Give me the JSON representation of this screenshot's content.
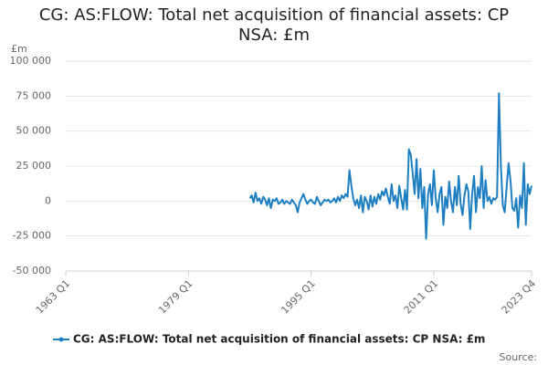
{
  "chart_data": {
    "type": "line",
    "title": "CG: AS:FLOW: Total net acquisition of financial assets: CP NSA: £m",
    "y_label": "£m",
    "source": "Source:",
    "x": [
      "1987 Q1",
      "1987 Q2",
      "1987 Q3",
      "1987 Q4",
      "1988 Q1",
      "1988 Q2",
      "1988 Q3",
      "1988 Q4",
      "1989 Q1",
      "1989 Q2",
      "1989 Q3",
      "1989 Q4",
      "1990 Q1",
      "1990 Q2",
      "1990 Q3",
      "1990 Q4",
      "1991 Q1",
      "1991 Q2",
      "1991 Q3",
      "1991 Q4",
      "1992 Q1",
      "1992 Q2",
      "1992 Q3",
      "1992 Q4",
      "1993 Q1",
      "1993 Q2",
      "1993 Q3",
      "1993 Q4",
      "1994 Q1",
      "1994 Q2",
      "1994 Q3",
      "1994 Q4",
      "1995 Q1",
      "1995 Q2",
      "1995 Q3",
      "1995 Q4",
      "1996 Q1",
      "1996 Q2",
      "1996 Q3",
      "1996 Q4",
      "1997 Q1",
      "1997 Q2",
      "1997 Q3",
      "1997 Q4",
      "1998 Q1",
      "1998 Q2",
      "1998 Q3",
      "1998 Q4",
      "1999 Q1",
      "1999 Q2",
      "1999 Q3",
      "1999 Q4",
      "2000 Q1",
      "2000 Q2",
      "2000 Q3",
      "2000 Q4",
      "2001 Q1",
      "2001 Q2",
      "2001 Q3",
      "2001 Q4",
      "2002 Q1",
      "2002 Q2",
      "2002 Q3",
      "2002 Q4",
      "2003 Q1",
      "2003 Q2",
      "2003 Q3",
      "2003 Q4",
      "2004 Q1",
      "2004 Q2",
      "2004 Q3",
      "2004 Q4",
      "2005 Q1",
      "2005 Q2",
      "2005 Q3",
      "2005 Q4",
      "2006 Q1",
      "2006 Q2",
      "2006 Q3",
      "2006 Q4",
      "2007 Q1",
      "2007 Q2",
      "2007 Q3",
      "2007 Q4",
      "2008 Q1",
      "2008 Q2",
      "2008 Q3",
      "2008 Q4",
      "2009 Q1",
      "2009 Q2",
      "2009 Q3",
      "2009 Q4",
      "2010 Q1",
      "2010 Q2",
      "2010 Q3",
      "2010 Q4",
      "2011 Q1",
      "2011 Q2",
      "2011 Q3",
      "2011 Q4",
      "2012 Q1",
      "2012 Q2",
      "2012 Q3",
      "2012 Q4",
      "2013 Q1",
      "2013 Q2",
      "2013 Q3",
      "2013 Q4",
      "2014 Q1",
      "2014 Q2",
      "2014 Q3",
      "2014 Q4",
      "2015 Q1",
      "2015 Q2",
      "2015 Q3",
      "2015 Q4",
      "2016 Q1",
      "2016 Q2",
      "2016 Q3",
      "2016 Q4",
      "2017 Q1",
      "2017 Q2",
      "2017 Q3",
      "2017 Q4",
      "2018 Q1",
      "2018 Q2",
      "2018 Q3",
      "2018 Q4",
      "2019 Q1",
      "2019 Q2",
      "2019 Q3",
      "2019 Q4",
      "2020 Q1",
      "2020 Q2",
      "2020 Q3",
      "2020 Q4",
      "2021 Q1",
      "2021 Q2",
      "2021 Q3",
      "2021 Q4",
      "2022 Q1",
      "2022 Q2",
      "2022 Q3",
      "2022 Q4",
      "2023 Q1",
      "2023 Q2",
      "2023 Q3",
      "2023 Q4"
    ],
    "series": [
      {
        "name": "CG: AS:FLOW: Total net acquisition of financial assets: CP NSA: £m",
        "color": "#1d7fc1",
        "values": [
          2000,
          4000,
          -1000,
          6000,
          0,
          2000,
          -2000,
          3000,
          1000,
          -3000,
          2000,
          -5000,
          1000,
          0,
          2000,
          -2000,
          -1000,
          1000,
          -2000,
          0,
          -1000,
          -2000,
          1000,
          -1000,
          -3000,
          -8000,
          -1000,
          2000,
          5000,
          1000,
          -2000,
          0,
          1000,
          -1000,
          -2000,
          3000,
          0,
          -3000,
          -1000,
          1000,
          0,
          1000,
          -1000,
          0,
          2000,
          -1000,
          3000,
          0,
          4000,
          2000,
          5000,
          3000,
          22000,
          11000,
          2000,
          -3000,
          1000,
          -5000,
          4000,
          -8000,
          3000,
          0,
          -6000,
          4000,
          -4000,
          3000,
          -2000,
          5000,
          1000,
          7000,
          4000,
          9000,
          3000,
          -2000,
          12000,
          0,
          4000,
          -5000,
          11000,
          2000,
          -6000,
          8000,
          -6000,
          37000,
          33000,
          20000,
          5000,
          30000,
          2000,
          23000,
          -5000,
          10000,
          -27000,
          5000,
          12000,
          -3000,
          22000,
          2000,
          -8000,
          5000,
          10000,
          -17000,
          3000,
          -5000,
          14000,
          0,
          -8000,
          10000,
          -3000,
          18000,
          -2000,
          -10000,
          4000,
          12000,
          7000,
          -20000,
          5000,
          18000,
          -8000,
          10000,
          2000,
          25000,
          -5000,
          15000,
          0,
          3000,
          -2000,
          2000,
          1000,
          3000,
          77000,
          25000,
          -3000,
          -8000,
          10000,
          27000,
          15000,
          -5000,
          -7000,
          2000,
          -19000,
          4000,
          -5000,
          27000,
          -17000,
          12000,
          5000,
          11000
        ]
      }
    ],
    "xlim": [
      "1963 Q1",
      "2023 Q4"
    ],
    "xticks": [
      "1963 Q1",
      "1979 Q1",
      "1995 Q1",
      "2011 Q1",
      "2023 Q4"
    ],
    "ylim": [
      -50000,
      100000
    ],
    "yticks": [
      {
        "value": -50000,
        "label": "-50 000"
      },
      {
        "value": -25000,
        "label": "-25 000"
      },
      0,
      {
        "value": 25000,
        "label": "25 000"
      },
      {
        "value": 50000,
        "label": "50 000"
      },
      {
        "value": 75000,
        "label": "75 000"
      },
      {
        "value": 100000,
        "label": "100 000"
      }
    ],
    "grid": true,
    "legend": "bottom"
  }
}
